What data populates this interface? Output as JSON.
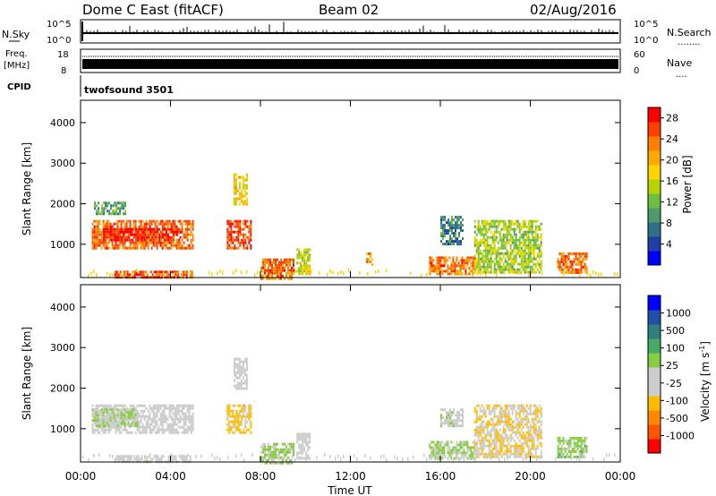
{
  "header": {
    "title": "Dome C East (fitACF)",
    "beam": "Beam 02",
    "date": "02/Aug/2016"
  },
  "noise_panel": {
    "left_label": "N.Sky",
    "left_ticks": [
      "10^5",
      "10^0"
    ],
    "right_label": "N.Search",
    "right_ticks": [
      "10^5",
      "10^0"
    ],
    "right_legend_dots": "........"
  },
  "freq_panel": {
    "left_label_1": "Freq.",
    "left_label_2": "[MHz]",
    "left_ticks": [
      "18",
      "8"
    ],
    "right_label": "Nave",
    "right_ticks": [
      "60",
      "0"
    ],
    "right_legend_dots": "...."
  },
  "cpid": {
    "label": "CPID",
    "program": "twofsound 3501"
  },
  "time_axis": {
    "label": "Time UT",
    "ticks": [
      "00:00",
      "04:00",
      "08:00",
      "12:00",
      "16:00",
      "20:00",
      "00:00"
    ]
  },
  "colors": {
    "power_scale": [
      "#0000ff",
      "#1f3fa6",
      "#2f6f8c",
      "#4d9a6a",
      "#6fbf3f",
      "#b8d400",
      "#ffd400",
      "#ffaa00",
      "#ff7f00",
      "#ff3f00",
      "#ff0000"
    ],
    "velocity_scale": [
      "#ff0000",
      "#ff5500",
      "#ff8800",
      "#ffbb00",
      "#cccccc",
      "#cccccc",
      "#88cc44",
      "#44aa66",
      "#2f7f7f",
      "#1f4fa6",
      "#0000ff"
    ]
  },
  "chart_data": [
    {
      "type": "heatmap",
      "title": "Power",
      "xlabel": "Time UT",
      "ylabel": "Slant Range [km]",
      "x_range_hours": [
        0,
        24
      ],
      "ylim": [
        180,
        4550
      ],
      "y_ticks": [
        "1000",
        "2000",
        "3000",
        "4000"
      ],
      "colorbar": {
        "label": "Power [dB]",
        "ticks": [
          "4",
          "8",
          "12",
          "16",
          "20",
          "24",
          "28"
        ],
        "range": [
          0,
          30
        ]
      },
      "regions": [
        {
          "t0": 0.5,
          "t1": 5.0,
          "r0": 900,
          "r1": 1600,
          "v": 24
        },
        {
          "t0": 1.0,
          "t1": 4.5,
          "r0": 1100,
          "r1": 1400,
          "v": 28
        },
        {
          "t0": 0.6,
          "t1": 2.0,
          "r0": 1750,
          "r1": 2050,
          "v": 10
        },
        {
          "t0": 1.5,
          "t1": 5.0,
          "r0": 180,
          "r1": 350,
          "v": 26
        },
        {
          "t0": 6.5,
          "t1": 7.6,
          "r0": 900,
          "r1": 1600,
          "v": 26
        },
        {
          "t0": 6.8,
          "t1": 7.4,
          "r0": 2000,
          "r1": 2750,
          "v": 18
        },
        {
          "t0": 8.0,
          "t1": 9.5,
          "r0": 180,
          "r1": 650,
          "v": 24
        },
        {
          "t0": 9.6,
          "t1": 10.2,
          "r0": 300,
          "r1": 900,
          "v": 16
        },
        {
          "t0": 12.7,
          "t1": 13.0,
          "r0": 500,
          "r1": 800,
          "v": 22
        },
        {
          "t0": 15.5,
          "t1": 17.5,
          "r0": 250,
          "r1": 700,
          "v": 24
        },
        {
          "t0": 16.0,
          "t1": 17.0,
          "r0": 1000,
          "r1": 1700,
          "v": 8
        },
        {
          "t0": 17.5,
          "t1": 20.5,
          "r0": 300,
          "r1": 1600,
          "v": 14
        },
        {
          "t0": 21.2,
          "t1": 22.5,
          "r0": 280,
          "r1": 800,
          "v": 24
        }
      ]
    },
    {
      "type": "heatmap",
      "title": "Velocity",
      "xlabel": "Time UT",
      "ylabel": "Slant Range [km]",
      "x_range_hours": [
        0,
        24
      ],
      "ylim": [
        180,
        4550
      ],
      "y_ticks": [
        "1000",
        "2000",
        "3000",
        "4000"
      ],
      "colorbar": {
        "label": "Velocity [m s^-1]",
        "ticks": [
          "-1000",
          "-500",
          "-100",
          "-25",
          "25",
          "100",
          "500",
          "1000"
        ],
        "range": [
          -1200,
          1200
        ]
      },
      "regions": [
        {
          "t0": 0.5,
          "t1": 5.0,
          "r0": 900,
          "r1": 1600,
          "v": -150
        },
        {
          "t0": 0.5,
          "t1": 2.5,
          "r0": 1100,
          "r1": 1500,
          "v": 120
        },
        {
          "t0": 1.5,
          "t1": 5.0,
          "r0": 180,
          "r1": 350,
          "v": -30
        },
        {
          "t0": 6.5,
          "t1": 7.6,
          "r0": 900,
          "r1": 1600,
          "v": -400
        },
        {
          "t0": 6.8,
          "t1": 7.4,
          "r0": 2000,
          "r1": 2750,
          "v": -80
        },
        {
          "t0": 8.0,
          "t1": 9.5,
          "r0": 180,
          "r1": 650,
          "v": 150
        },
        {
          "t0": 9.6,
          "t1": 10.2,
          "r0": 300,
          "r1": 900,
          "v": -120
        },
        {
          "t0": 15.5,
          "t1": 17.5,
          "r0": 250,
          "r1": 700,
          "v": 130
        },
        {
          "t0": 16.0,
          "t1": 17.0,
          "r0": 1100,
          "r1": 1500,
          "v": 20
        },
        {
          "t0": 17.5,
          "t1": 20.5,
          "r0": 300,
          "r1": 1600,
          "v": -300
        },
        {
          "t0": 21.2,
          "t1": 22.5,
          "r0": 280,
          "r1": 800,
          "v": 200
        }
      ]
    }
  ]
}
